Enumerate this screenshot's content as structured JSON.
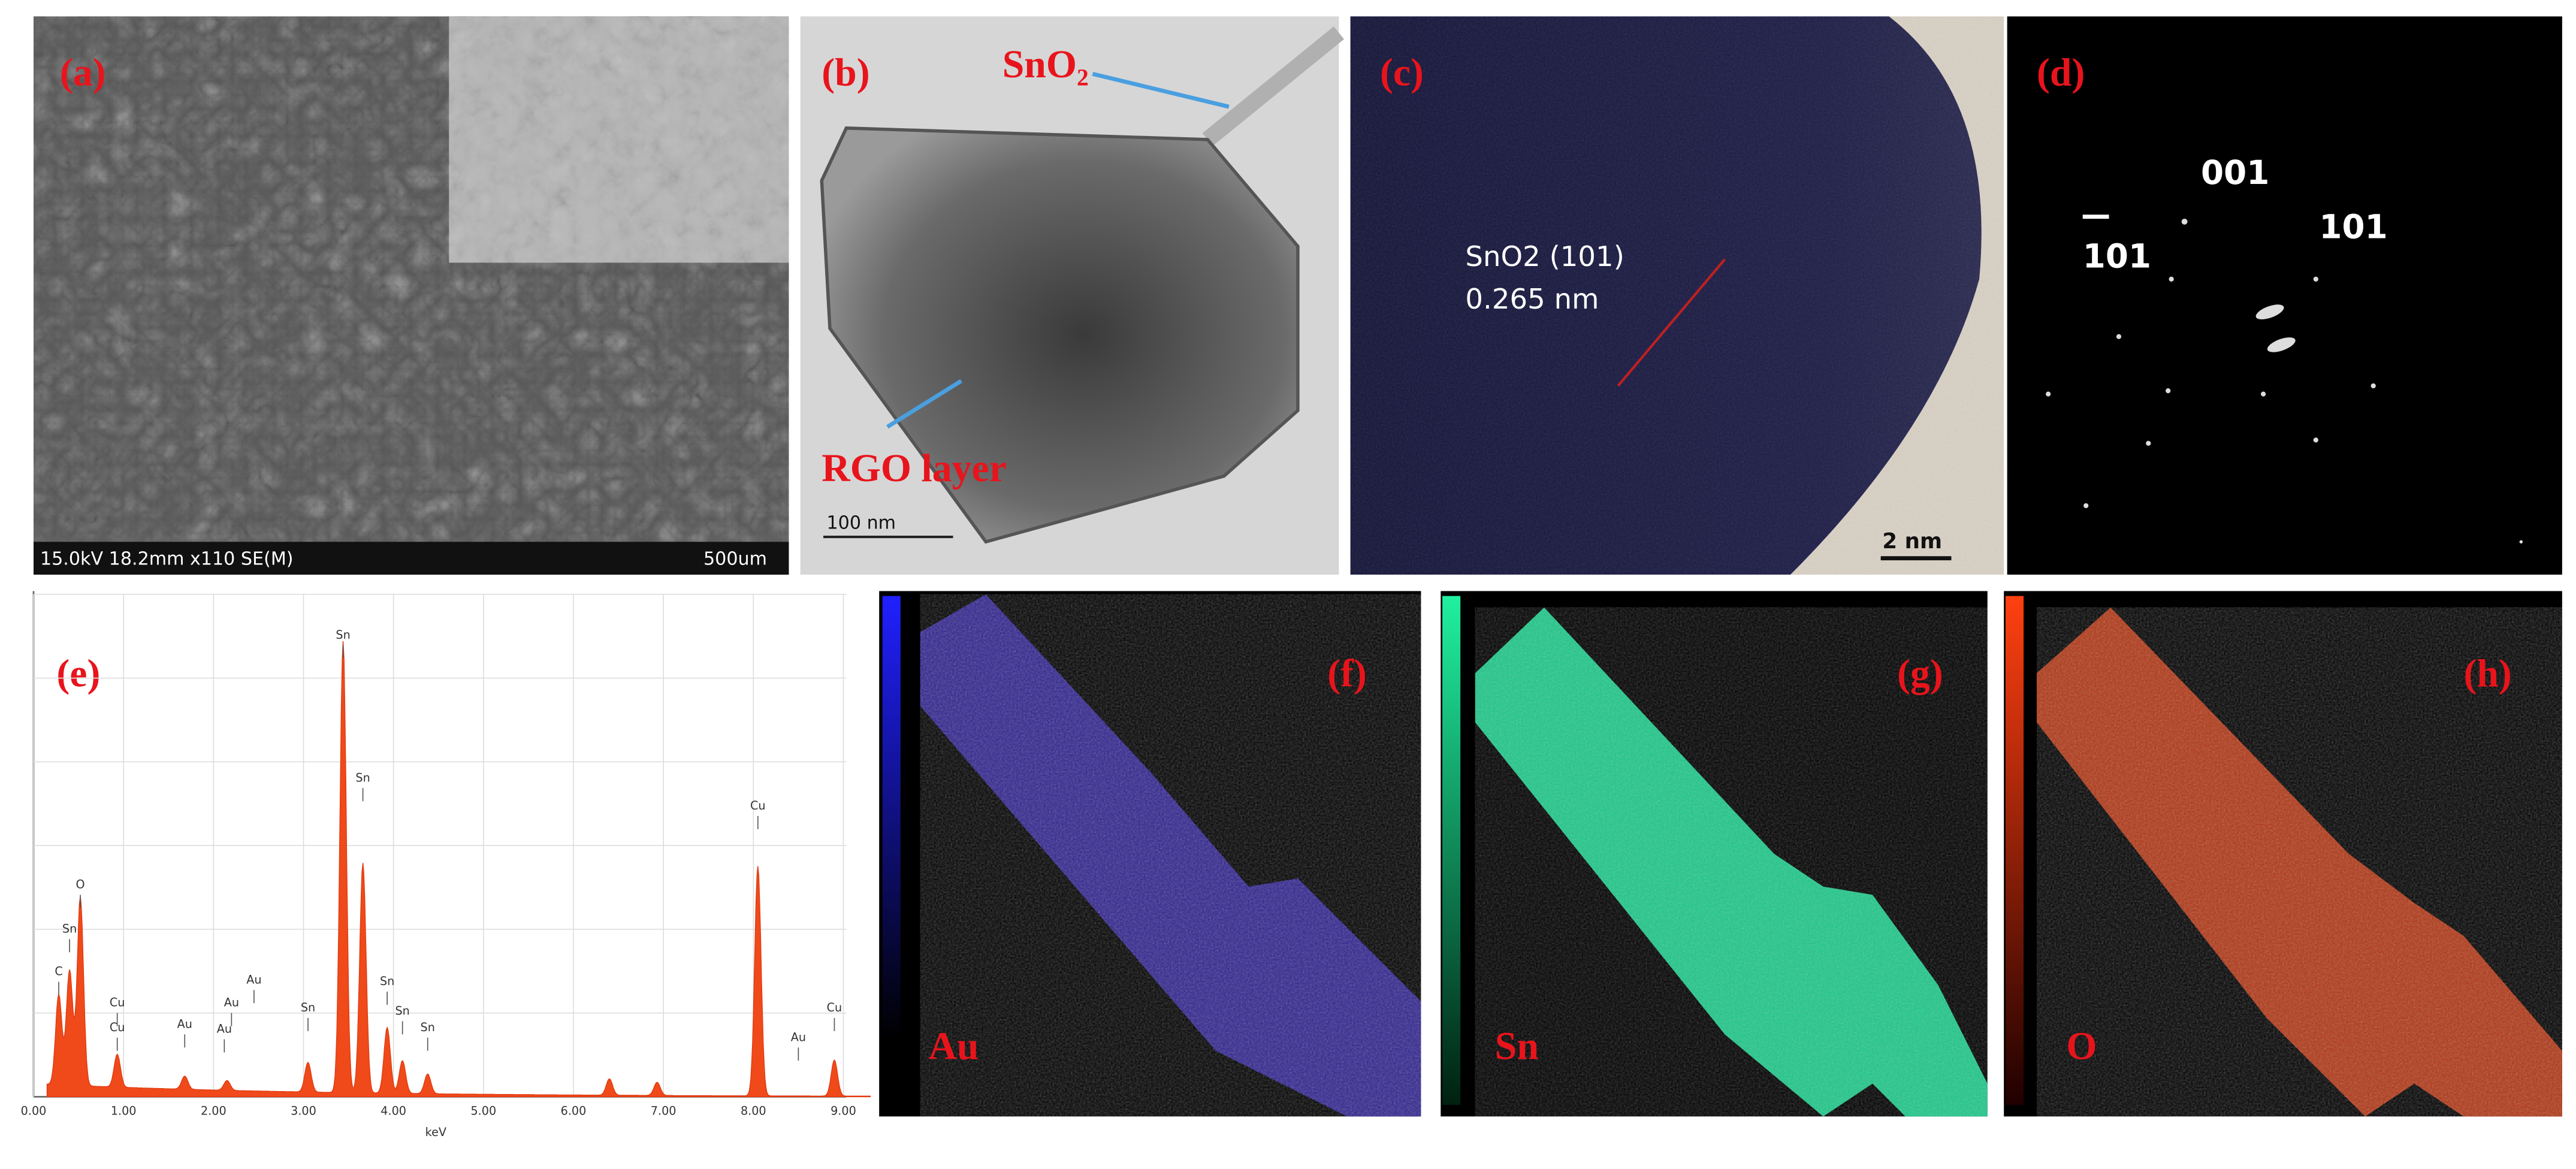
{
  "panels": {
    "a": {
      "label": "(a)",
      "scale_info": "15.0kV 18.2mm x110 SE(M)",
      "scale_bar": "500um"
    },
    "b": {
      "label": "(b)",
      "annotations": [
        "SnO₂",
        "RGO layer"
      ],
      "scale_bar": "100 nm"
    },
    "c": {
      "label": "(c)",
      "plane": "SnO2 (101)",
      "spacing": "0.265 nm",
      "scale_bar": "2 nm"
    },
    "d": {
      "label": "(d)",
      "spots": [
        "001",
        "101",
        "101"
      ]
    },
    "e": {
      "label": "(e)",
      "x_axis_label": "keV",
      "x_ticks": [
        "0.00",
        "1.00",
        "2.00",
        "3.00",
        "4.00",
        "5.00",
        "6.00",
        "7.00",
        "8.00",
        "9.00"
      ],
      "peaks": [
        "C",
        "Sn",
        "O",
        "Cu",
        "Cu",
        "Au",
        "Au",
        "Au",
        "Au",
        "Sn",
        "Sn",
        "Sn",
        "Sn",
        "Sn",
        "Sn",
        "Cu",
        "Au",
        "Cu"
      ]
    },
    "f": {
      "label": "(f)",
      "element": "Au"
    },
    "g": {
      "label": "(g)",
      "element": "Sn"
    },
    "h": {
      "label": "(h)",
      "element": "O"
    }
  }
}
